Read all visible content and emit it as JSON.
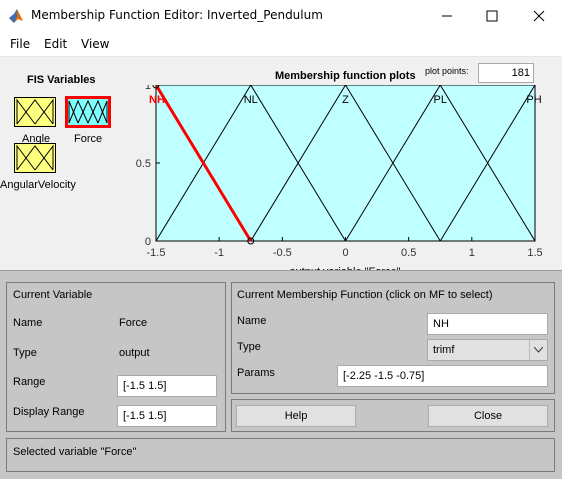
{
  "window": {
    "title": "Membership Function Editor: Inverted_Pendulum",
    "app_icon": "matlab-logo-icon"
  },
  "menu": [
    "File",
    "Edit",
    "View"
  ],
  "fis_variables": {
    "title": "FIS Variables",
    "items": [
      {
        "label": "Angle",
        "selected": false
      },
      {
        "label": "Force",
        "selected": true
      },
      {
        "label": "AngularVelocity",
        "selected": false
      }
    ]
  },
  "plot": {
    "title": "Membership function plots",
    "plot_points_label": "plot points:",
    "plot_points_value": "181",
    "xlabel": "output variable \"Force\"",
    "background": "#c0ffff",
    "selected_color": "#ff0000"
  },
  "chart_data": {
    "type": "line",
    "title": "Membership function plots",
    "xlabel": "output variable \"Force\"",
    "ylabel": "",
    "xlim": [
      -1.5,
      1.5
    ],
    "ylim": [
      0,
      1
    ],
    "xticks": [
      "-1.5",
      "-1",
      "-0.5",
      "0",
      "0.5",
      "1",
      "1.5"
    ],
    "yticks": [
      "0",
      "0.5",
      "1"
    ],
    "series": [
      {
        "name": "NH",
        "x": [
          -2.25,
          -1.5,
          -0.75
        ],
        "y": [
          0,
          1,
          0
        ],
        "selected": true
      },
      {
        "name": "NL",
        "x": [
          -1.5,
          -0.75,
          0
        ],
        "y": [
          0,
          1,
          0
        ],
        "selected": false
      },
      {
        "name": "Z",
        "x": [
          -0.75,
          0,
          0.75
        ],
        "y": [
          0,
          1,
          0
        ],
        "selected": false
      },
      {
        "name": "PL",
        "x": [
          0,
          0.75,
          1.5
        ],
        "y": [
          0,
          1,
          0
        ],
        "selected": false
      },
      {
        "name": "PH",
        "x": [
          0.75,
          1.5,
          2.25
        ],
        "y": [
          0,
          1,
          0
        ],
        "selected": false
      }
    ]
  },
  "current_variable": {
    "title": "Current Variable",
    "name_label": "Name",
    "name_value": "Force",
    "type_label": "Type",
    "type_value": "output",
    "range_label": "Range",
    "range_value": "[-1.5 1.5]",
    "display_range_label": "Display Range",
    "display_range_value": "[-1.5 1.5]"
  },
  "current_mf": {
    "title": "Current Membership Function (click on MF to select)",
    "name_label": "Name",
    "name_value": "NH",
    "type_label": "Type",
    "type_value": "trimf",
    "params_label": "Params",
    "params_value": "[-2.25 -1.5 -0.75]"
  },
  "buttons": {
    "help": "Help",
    "close": "Close"
  },
  "status": "Selected variable \"Force\""
}
